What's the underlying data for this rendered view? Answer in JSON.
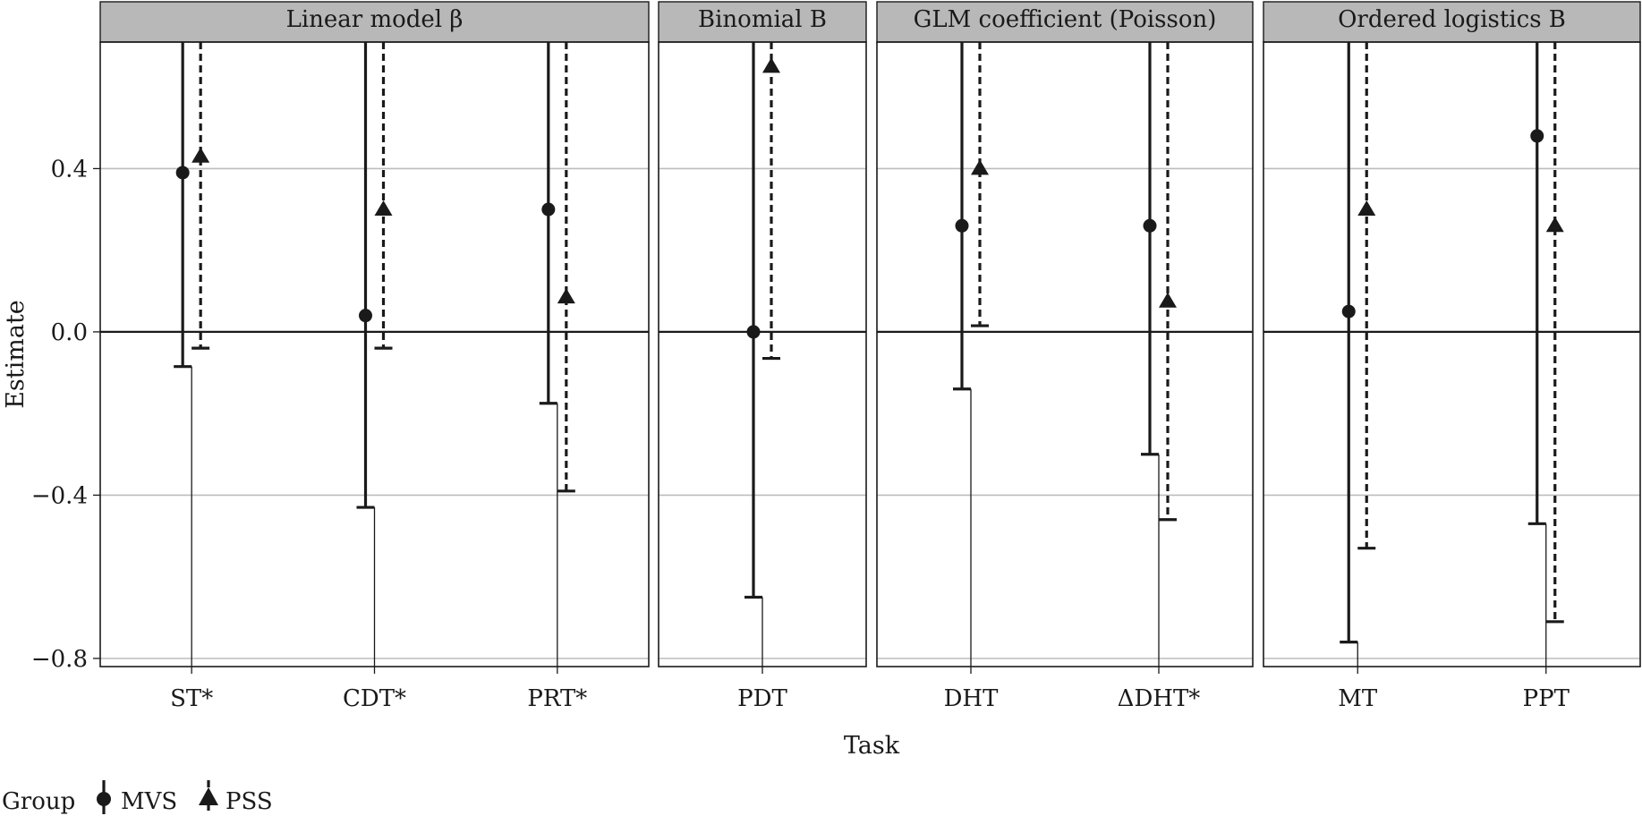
{
  "chart_data": {
    "type": "errorbar",
    "xlabel": "Task",
    "ylabel": "Estimate",
    "ylim": [
      -0.82,
      0.71
    ],
    "yticks": [
      {
        "value": 0.4,
        "label": "0.4"
      },
      {
        "value": 0.0,
        "label": "0.0"
      },
      {
        "value": -0.4,
        "label": "−0.4"
      },
      {
        "value": -0.8,
        "label": "−0.8"
      }
    ],
    "grid": true,
    "legend": {
      "position": "bottom-left",
      "title": "Group",
      "entries": [
        {
          "name": "MVS",
          "marker": "circle",
          "line": "solid"
        },
        {
          "name": "PSS",
          "marker": "triangle",
          "line": "dashed"
        }
      ]
    },
    "panels": [
      {
        "label": "Linear model β",
        "tasks": [
          {
            "task": "ST*",
            "MVS": {
              "estimate": 0.39,
              "lower": -0.085,
              "upper": 0.71
            },
            "PSS": {
              "estimate": 0.43,
              "lower": -0.04,
              "upper": 0.71
            }
          },
          {
            "task": "CDT*",
            "MVS": {
              "estimate": 0.04,
              "lower": -0.43,
              "upper": 0.71
            },
            "PSS": {
              "estimate": 0.3,
              "lower": -0.04,
              "upper": 0.71
            }
          },
          {
            "task": "PRT*",
            "MVS": {
              "estimate": 0.3,
              "lower": -0.175,
              "upper": 0.71
            },
            "PSS": {
              "estimate": 0.085,
              "lower": -0.39,
              "upper": 0.71
            }
          }
        ]
      },
      {
        "label": "Binomial B",
        "tasks": [
          {
            "task": "PDT",
            "MVS": {
              "estimate": 0.0,
              "lower": -0.65,
              "upper": 0.71
            },
            "PSS": {
              "estimate": 0.65,
              "lower": -0.065,
              "upper": 0.71
            }
          }
        ]
      },
      {
        "label": "GLM coefficient (Poisson)",
        "tasks": [
          {
            "task": "DHT",
            "MVS": {
              "estimate": 0.26,
              "lower": -0.14,
              "upper": 0.71
            },
            "PSS": {
              "estimate": 0.4,
              "lower": 0.015,
              "upper": 0.71
            }
          },
          {
            "task": "ΔDHT*",
            "MVS": {
              "estimate": 0.26,
              "lower": -0.3,
              "upper": 0.71
            },
            "PSS": {
              "estimate": 0.075,
              "lower": -0.46,
              "upper": 0.71
            }
          }
        ]
      },
      {
        "label": "Ordered logistics B",
        "tasks": [
          {
            "task": "MT",
            "MVS": {
              "estimate": 0.05,
              "lower": -0.76,
              "upper": 0.71
            },
            "PSS": {
              "estimate": 0.3,
              "lower": -0.53,
              "upper": 0.71
            }
          },
          {
            "task": "PPT",
            "MVS": {
              "estimate": 0.48,
              "lower": -0.47,
              "upper": 0.71
            },
            "PSS": {
              "estimate": 0.26,
              "lower": -0.71,
              "upper": 0.71
            }
          }
        ]
      }
    ]
  }
}
